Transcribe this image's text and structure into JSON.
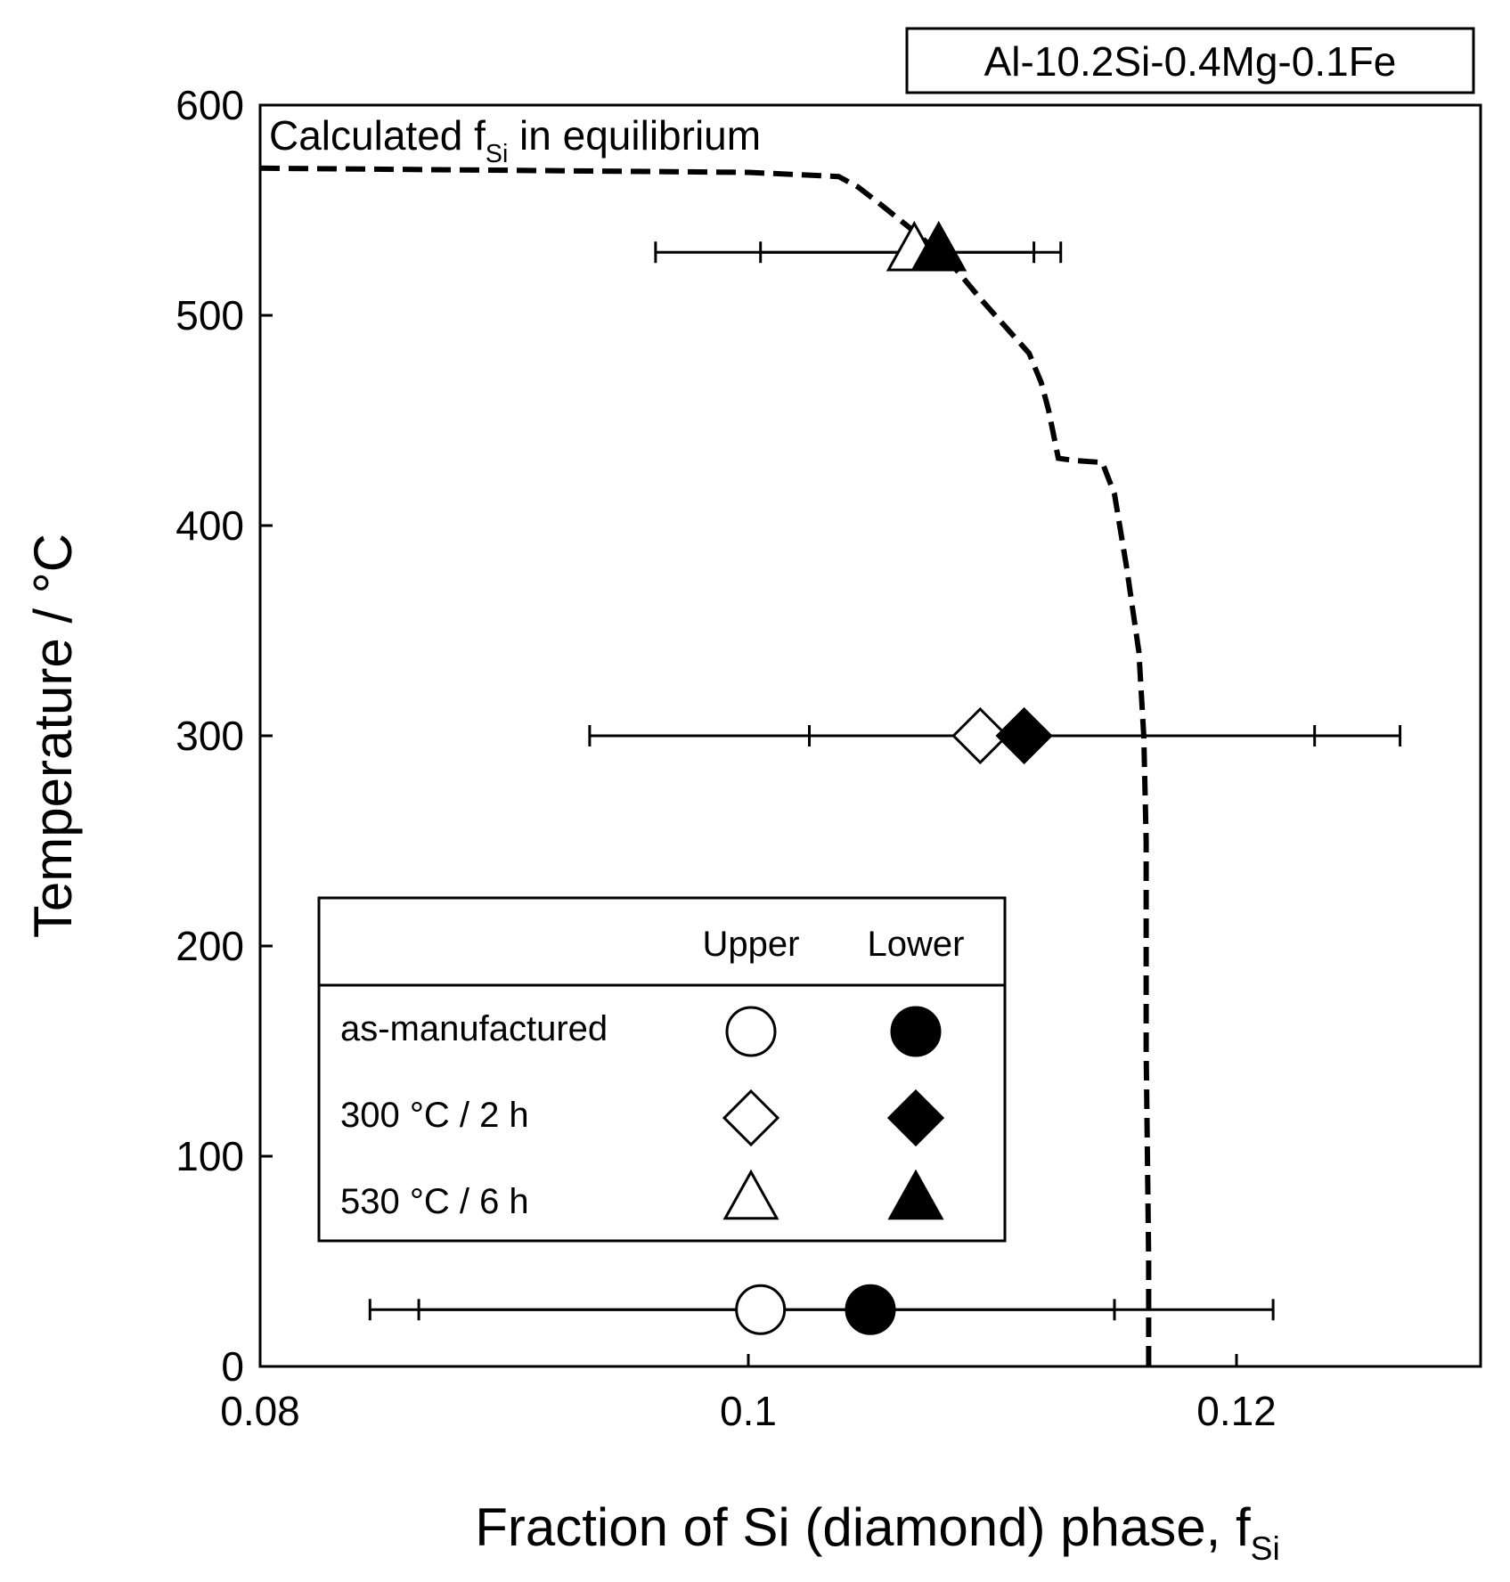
{
  "chart_data": {
    "type": "scatter",
    "alloy_label": "Al-10.2Si-0.4Mg-0.1Fe",
    "xlabel_main": "Fraction of Si (diamond) phase, f",
    "xlabel_sub": "Si",
    "ylabel": "Temperature / °C",
    "xlim": [
      0.08,
      0.13
    ],
    "ylim": [
      0,
      600
    ],
    "x_ticks": [
      "0.08",
      "0.1",
      "0.12"
    ],
    "x_tick_values": [
      0.08,
      0.1,
      0.12
    ],
    "y_ticks": [
      "0",
      "100",
      "200",
      "300",
      "400",
      "500",
      "600"
    ],
    "y_tick_values": [
      0,
      100,
      200,
      300,
      400,
      500,
      600
    ],
    "curve_label_main": "Calculated f",
    "curve_label_sub": "Si",
    "curve_label_tail": " in equilibrium",
    "equilibrium_curve": {
      "x": [
        0.08,
        0.1,
        0.1037,
        0.1045,
        0.1055,
        0.107,
        0.1085,
        0.1095,
        0.1105,
        0.1115,
        0.112,
        0.1123,
        0.1127,
        0.1133,
        0.1145,
        0.115,
        0.1155,
        0.116,
        0.1162,
        0.1163,
        0.1163,
        0.1164,
        0.1164
      ],
      "y": [
        570,
        568,
        566,
        561,
        552,
        538,
        522,
        508,
        495,
        482,
        468,
        455,
        432,
        431,
        430,
        415,
        380,
        340,
        300,
        250,
        150,
        50,
        0
      ]
    },
    "legend": {
      "header_upper": "Upper",
      "header_lower": "Lower",
      "rows": [
        {
          "label": "as-manufactured",
          "marker": "circle"
        },
        {
          "label": "300 °C / 2 h",
          "marker": "diamond"
        },
        {
          "label": "530 °C / 6 h",
          "marker": "triangle"
        }
      ]
    },
    "series": [
      {
        "name": "as-manufactured",
        "marker": "circle",
        "y": 27,
        "upper": {
          "x": 0.1005,
          "err": [
            0.0865,
            0.115
          ]
        },
        "lower": {
          "x": 0.105,
          "err": [
            0.0845,
            0.1215
          ]
        }
      },
      {
        "name": "300 °C / 2 h",
        "marker": "diamond",
        "y": 300,
        "upper": {
          "x": 0.1095,
          "err": [
            0.1025,
            0.1232
          ]
        },
        "lower": {
          "x": 0.1113,
          "err": [
            0.0935,
            0.1267
          ]
        }
      },
      {
        "name": "530 °C / 6 h",
        "marker": "triangle",
        "y": 530,
        "upper": {
          "x": 0.1068,
          "err": [
            0.1005,
            0.1117
          ]
        },
        "lower": {
          "x": 0.1078,
          "err": [
            0.0962,
            0.1128
          ]
        }
      }
    ]
  }
}
